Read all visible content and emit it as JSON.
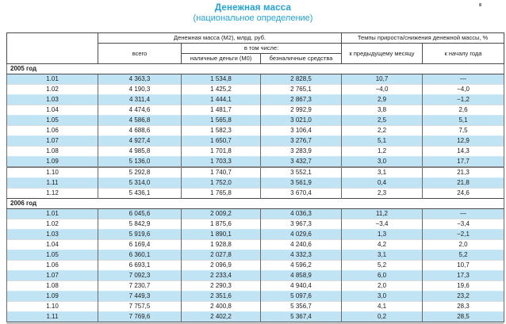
{
  "page": {
    "title": "Денежная масса",
    "subtitle": "(национальное определение)"
  },
  "colors": {
    "title_blue": "#1fa3df",
    "stripe_blue": "#c1e4f5",
    "border_dark": "#4a4a4a"
  },
  "table": {
    "col_headers": {
      "m2_group": "Денежная масса (М2), млрд. руб.",
      "rates_group": "Темпы прироста/снижения денежной массы, %",
      "total": "всего",
      "including": "в том числе:",
      "cash_m0": "наличные деньги (М0)",
      "noncash": "безналичные средства",
      "to_prev_month": "к предыдущему месяцу",
      "to_year_start": "к началу года"
    },
    "sections": [
      {
        "label": "2005 год",
        "rows": [
          [
            "1.01",
            "4 363,3",
            "1 534,8",
            "2 828,5",
            "10,7",
            "—"
          ],
          [
            "1.02",
            "4 190,3",
            "1 425,2",
            "2 765,1",
            "−4,0",
            "−4,0"
          ],
          [
            "1.03",
            "4 311,4",
            "1 444,1",
            "2 867,3",
            "2,9",
            "−1,2"
          ],
          [
            "1.04",
            "4 474,6",
            "1 481,7",
            "2 992,9",
            "3,8",
            "2,6"
          ],
          [
            "1.05",
            "4 586,8",
            "1 565,8",
            "3 021,0",
            "2,5",
            "5,1"
          ],
          [
            "1.06",
            "4 688,6",
            "1 582,3",
            "3 106,4",
            "2,2",
            "7,5"
          ],
          [
            "1.07",
            "4 927,4",
            "1 650,7",
            "3 276,7",
            "5,1",
            "12,9"
          ],
          [
            "1.08",
            "4 985,8",
            "1 701,8",
            "3 283,9",
            "1,2",
            "14,3"
          ],
          [
            "1.09",
            "5 136,0",
            "1 703,3",
            "3 432,7",
            "3,0",
            "17,7"
          ],
          [
            "1.10",
            "5 292,8",
            "1 740,7",
            "3 552,1",
            "3,1",
            "21,3"
          ],
          [
            "1.11",
            "5 314,0",
            "1 752,0",
            "3 561,9",
            "0,4",
            "21,8"
          ],
          [
            "1.12",
            "5 436,1",
            "1 765,8",
            "3 670,4",
            "2,3",
            "24,6"
          ]
        ]
      },
      {
        "label": "2006 год",
        "rows": [
          [
            "1.01",
            "6 045,6",
            "2 009,2",
            "4 036,3",
            "11,2",
            "—"
          ],
          [
            "1.02",
            "5 842,9",
            "1 875,6",
            "3 967,3",
            "−3,4",
            "−3,4"
          ],
          [
            "1.03",
            "5 919,6",
            "1 890,1",
            "4 029,6",
            "1,3",
            "−2,1"
          ],
          [
            "1.04",
            "6 169,4",
            "1 928,8",
            "4 240,6",
            "4,2",
            "2,0"
          ],
          [
            "1.05",
            "6 360,1",
            "2 027,8",
            "4 332,3",
            "3,1",
            "5,2"
          ],
          [
            "1.06",
            "6 693,1",
            "2 096,9",
            "4 596,2",
            "5,2",
            "10,7"
          ],
          [
            "1.07",
            "7 092,3",
            "2 233,4",
            "4 858,9",
            "6,0",
            "17,3"
          ],
          [
            "1.08",
            "7 230,7",
            "2 290,3",
            "4 940,4",
            "2,0",
            "19,6"
          ],
          [
            "1.09",
            "7 449,3",
            "2 351,6",
            "5 097,6",
            "3,0",
            "23,2"
          ],
          [
            "1.10",
            "7 757,5",
            "2 400,8",
            "5 356,7",
            "4,1",
            "28,3"
          ],
          [
            "1.11",
            "7 769,6",
            "2 402,2",
            "5 367,4",
            "0,2",
            "28,5"
          ]
        ]
      }
    ]
  }
}
